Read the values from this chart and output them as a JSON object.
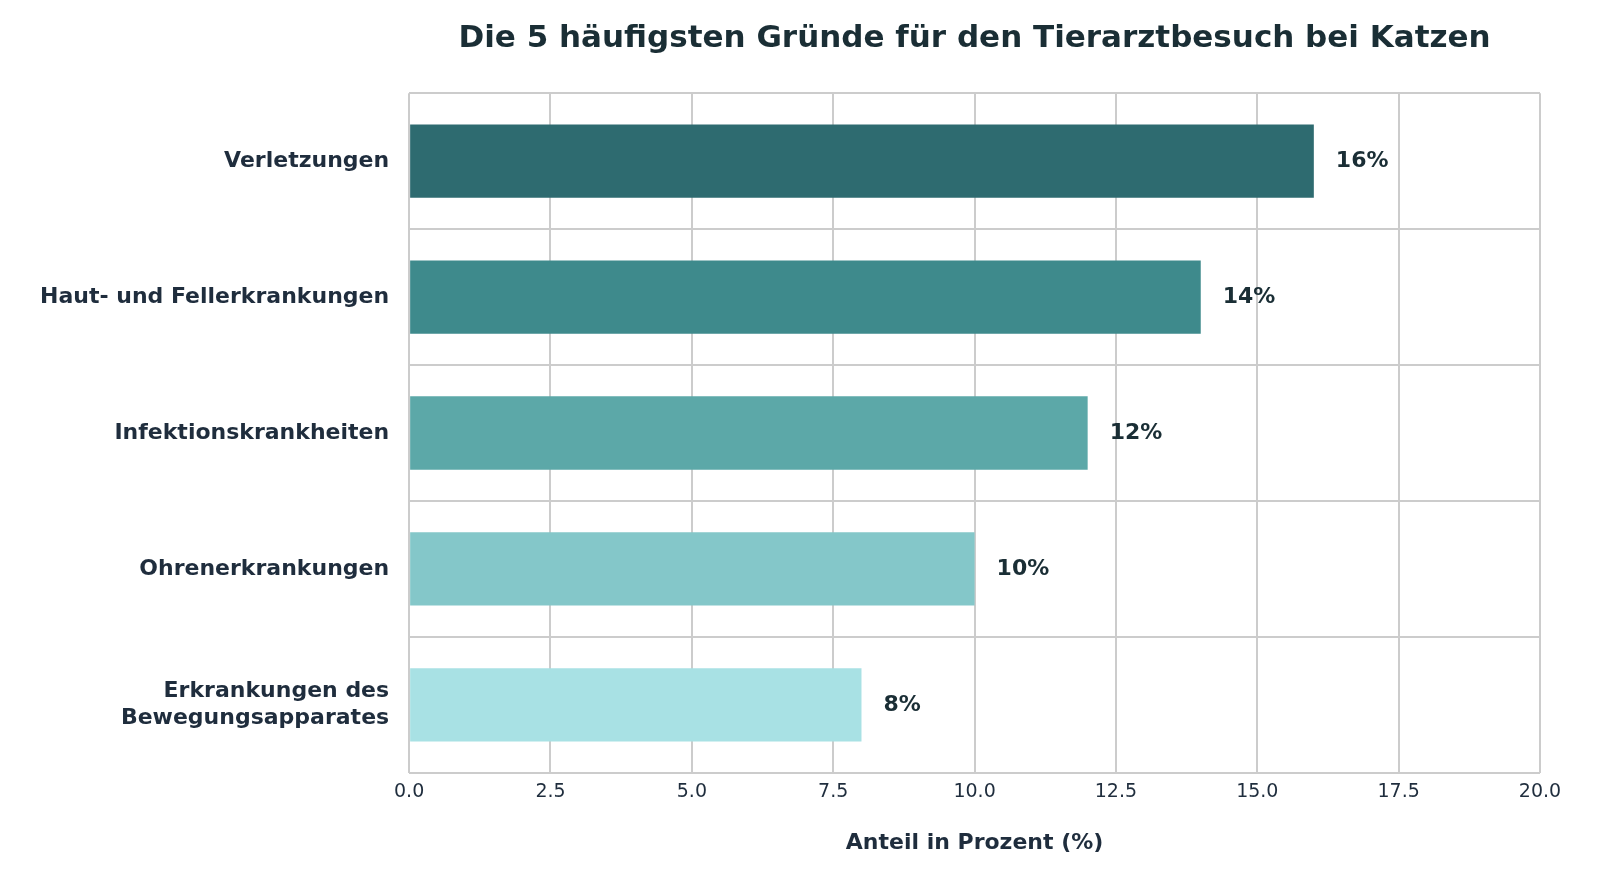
{
  "chart_data": {
    "type": "bar",
    "orientation": "horizontal",
    "title": "Die 5 häufigsten Gründe für den Tierarztbesuch bei Katzen",
    "xlabel": "Anteil in Prozent (%)",
    "categories": [
      "Verletzungen",
      "Haut- und Fellerkrankungen",
      "Infektionskrankheiten",
      "Ohrenerkrankungen",
      "Erkrankungen des\nBewegungsapparates"
    ],
    "values": [
      16,
      14,
      12,
      10,
      8
    ],
    "colors": [
      "#2e6b70",
      "#3e8a8c",
      "#5ca8a8",
      "#84c7c9",
      "#a8e1e4"
    ],
    "value_labels": [
      "16%",
      "14%",
      "12%",
      "10%",
      "8%"
    ],
    "xlim": [
      0,
      20
    ],
    "xticks": [
      {
        "value": 0,
        "label": "0.0"
      },
      {
        "value": 2.5,
        "label": "2.5"
      },
      {
        "value": 5,
        "label": "5.0"
      },
      {
        "value": 7.5,
        "label": "7.5"
      },
      {
        "value": 10,
        "label": "10.0"
      },
      {
        "value": 12.5,
        "label": "12.5"
      },
      {
        "value": 15,
        "label": "15.0"
      },
      {
        "value": 17.5,
        "label": "17.5"
      },
      {
        "value": 20,
        "label": "20.0"
      }
    ],
    "grid": true,
    "legend": false
  }
}
